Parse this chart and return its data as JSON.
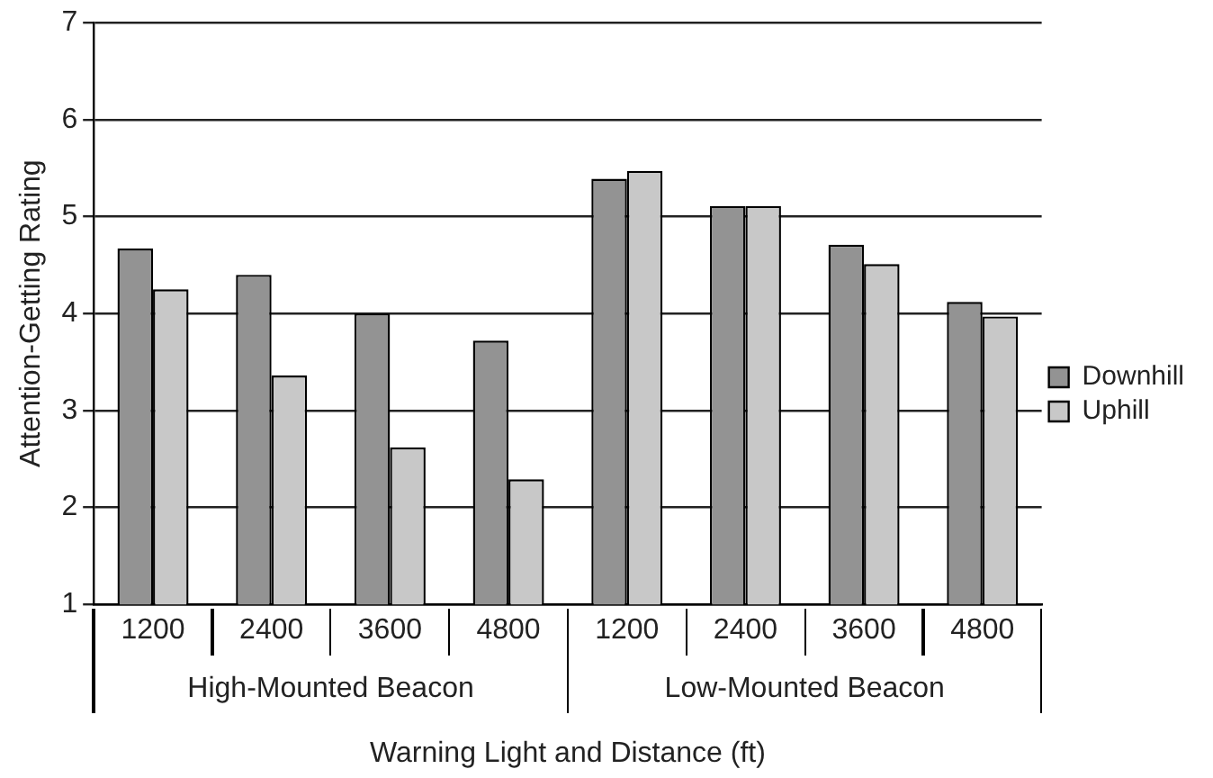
{
  "chart_data": {
    "type": "bar",
    "xlabel": "Warning Light and Distance (ft)",
    "ylabel": "Attention-Getting Rating",
    "categories": [
      "1200",
      "2400",
      "3600",
      "4800",
      "1200",
      "2400",
      "3600",
      "4800"
    ],
    "series": [
      {
        "name": "Downhill",
        "color": "#939393",
        "values": [
          4.67,
          4.4,
          4.0,
          3.72,
          5.39,
          5.11,
          4.71,
          4.12
        ]
      },
      {
        "name": "Uphill",
        "color": "#c8c8c8",
        "values": [
          4.25,
          3.36,
          2.62,
          2.29,
          5.47,
          5.11,
          4.51,
          3.97
        ]
      }
    ],
    "annotations": [
      "High-Mounted Beacon",
      "Low-Mounted Beacon"
    ],
    "ylim": [
      1,
      7
    ],
    "yticks": [
      1,
      2,
      3,
      4,
      5,
      6,
      7
    ],
    "grid": "y",
    "legend": "right"
  }
}
